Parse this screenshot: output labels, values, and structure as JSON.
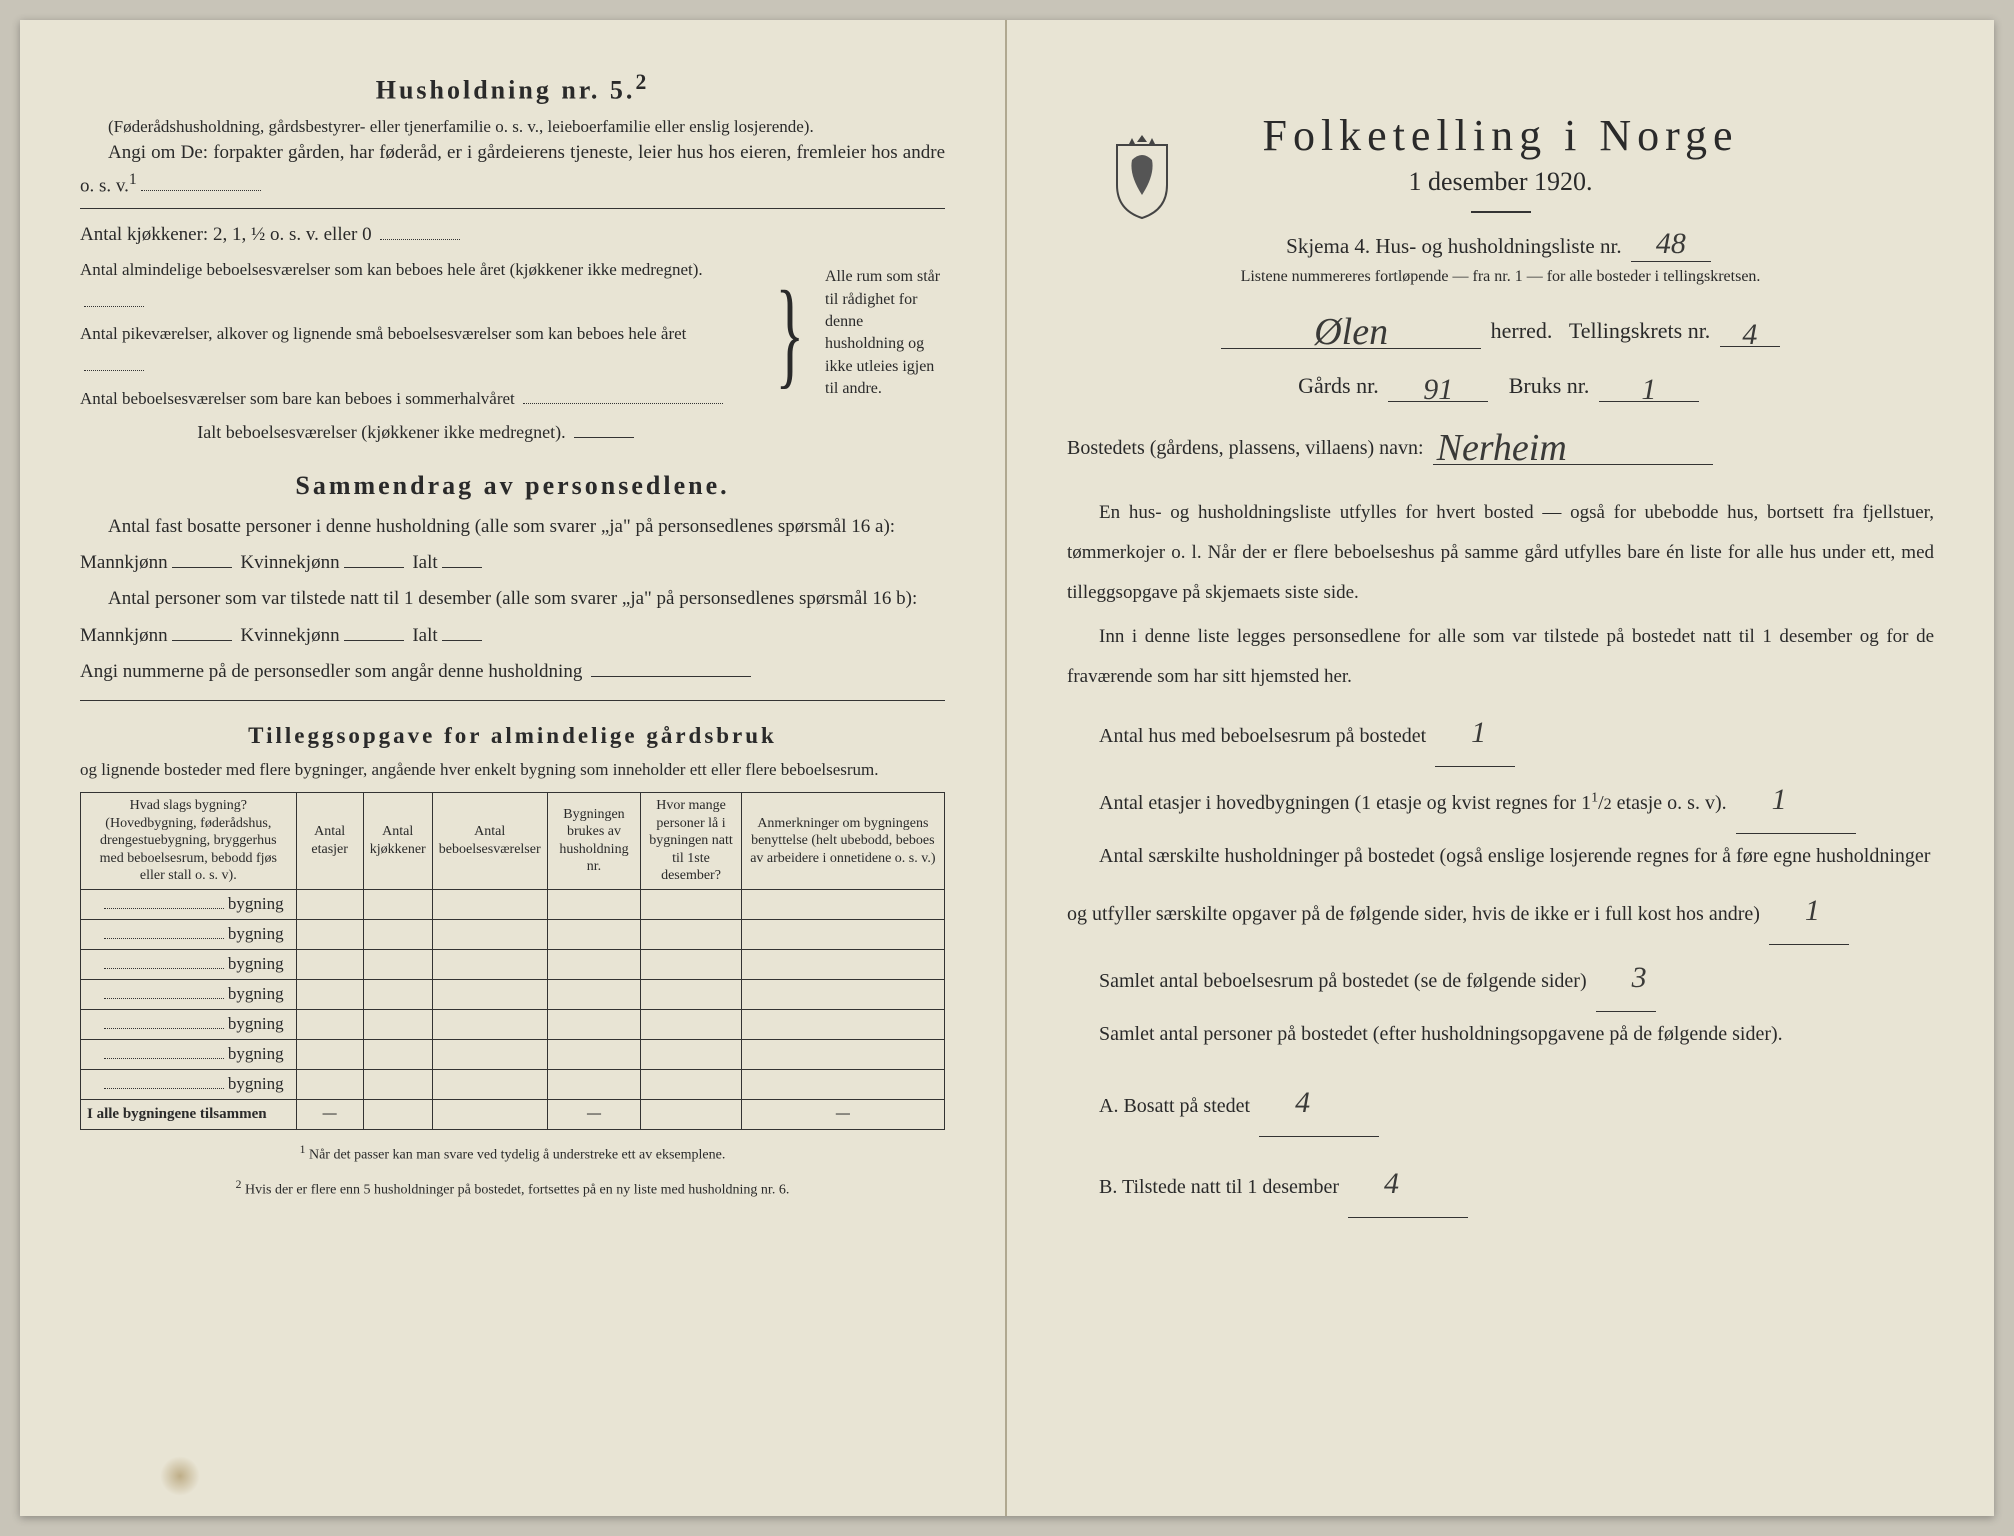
{
  "left": {
    "h5_title": "Husholdning nr. 5.",
    "h5_sup": "2",
    "h5_note1": "(Føderådshusholdning, gårdsbestyrer- eller tjenerfamilie o. s. v., leieboerfamilie eller enslig losjerende).",
    "h5_note2": "Angi om De: forpakter gården, har føderåd, er i gårdeierens tjeneste, leier hus hos eieren, fremleier hos andre o. s. v.",
    "kjokkener_label": "Antal kjøkkener: 2, 1, ½ o. s. v. eller 0",
    "rooms1": "Antal almindelige beboelsesværelser som kan beboes hele året (kjøkkener ikke medregnet).",
    "rooms2": "Antal pikeværelser, alkover og lignende små beboelsesværelser som kan beboes hele året",
    "rooms3": "Antal beboelsesværelser som bare kan beboes i sommerhalvåret",
    "rooms_total": "Ialt beboelsesværelser (kjøkkener ikke medregnet).",
    "brace_text": "Alle rum som står til rådighet for denne husholdning og ikke utleies igjen til andre.",
    "sammen_title": "Sammendrag av personsedlene.",
    "sammen1": "Antal fast bosatte personer i denne husholdning (alle som svarer „ja\" på personsedlenes spørsmål 16 a): Mannkjønn",
    "kvinn": "Kvinnekjønn",
    "ialt": "Ialt",
    "sammen2": "Antal personer som var tilstede natt til 1 desember (alle som svarer „ja\" på personsedlenes spørsmål 16 b): Mannkjønn",
    "angi": "Angi nummerne på de personsedler som angår denne husholdning",
    "tillegg_title": "Tilleggsopgave for almindelige gårdsbruk",
    "tillegg_sub": "og lignende bosteder med flere bygninger, angående hver enkelt bygning som inneholder ett eller flere beboelsesrum.",
    "table": {
      "cols": [
        "Hvad slags bygning?\n(Hovedbygning, føderådshus, drengestuebygning, bryggerhus med beboelsesrum, bebodd fjøs eller stall o. s. v).",
        "Antal etasjer",
        "Antal kjøkkener",
        "Antal beboelsesværelser",
        "Bygningen brukes av husholdning nr.",
        "Hvor mange personer lå i bygningen natt til 1ste desember?",
        "Anmerkninger om bygningens benyttelse (helt ubebodd, beboes av arbeidere i onnetidene o. s. v.)"
      ],
      "row_label": "bygning",
      "row_count": 7,
      "total_label": "I alle bygningene tilsammen",
      "dash": "—"
    },
    "foot1": "Når det passer kan man svare ved tydelig å understreke ett av eksemplene.",
    "foot2": "Hvis der er flere enn 5 husholdninger på bostedet, fortsettes på en ny liste med husholdning nr. 6."
  },
  "right": {
    "main_title": "Folketelling i Norge",
    "date": "1 desember 1920.",
    "skjema": "Skjema 4.  Hus- og husholdningsliste nr.",
    "listene": "Listene nummereres fortløpende — fra nr. 1 — for alle bosteder i tellingskretsen.",
    "herred_label": "herred.",
    "krets_label": "Tellingskrets nr.",
    "gards_label": "Gårds nr.",
    "bruks_label": "Bruks nr.",
    "bosted_label": "Bostedets (gårdens, plassens, villaens) navn:",
    "handwritten": {
      "liste_nr": "48",
      "herred": "Ølen",
      "krets_nr": "4",
      "gards_nr": "91",
      "bruks_nr": "1",
      "bosted": "Nerheim",
      "hus_count": "1",
      "etasjer": "1",
      "husholdninger": "1",
      "beboelsesrum": "3",
      "bosatt": "4",
      "tilstede": "4"
    },
    "para1": "En hus- og husholdningsliste utfylles for hvert bosted — også for ubebodde hus, bortsett fra fjellstuer, tømmerkojer o. l. Når der er flere beboelseshus på samme gård utfylles bare én liste for alle hus under ett, med tilleggsopgave på skjemaets siste side.",
    "para2": "Inn i denne liste legges personsedlene for alle som var tilstede på bostedet natt til 1 desember og for de fraværende som har sitt hjemsted her.",
    "q1": "Antal hus med beboelsesrum på bostedet",
    "q2a": "Antal etasjer i hovedbygningen (1 etasje og kvist regnes for 1",
    "q2b": "etasje o. s. v).",
    "q3": "Antal særskilte husholdninger på bostedet (også enslige losjerende regnes for å føre egne husholdninger og utfyller særskilte opgaver på de følgende sider, hvis de ikke er i full kost hos andre)",
    "q4": "Samlet antal beboelsesrum på bostedet (se de følgende sider)",
    "q5": "Samlet antal personer på bostedet (efter husholdningsopgavene på de følgende sider).",
    "qA": "A.  Bosatt på stedet",
    "qB": "B.  Tilstede natt til 1 desember"
  }
}
